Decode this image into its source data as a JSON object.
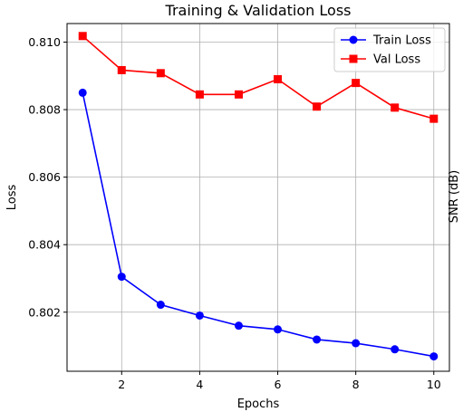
{
  "chart_data": {
    "type": "line",
    "title": "Training & Validation Loss",
    "xlabel": "Epochs",
    "ylabel": "Loss",
    "y2label": "SNR (dB)",
    "xlim": [
      0.6,
      10.4
    ],
    "ylim": [
      0.80025,
      0.81055
    ],
    "xticks": [
      2,
      4,
      6,
      8,
      10
    ],
    "yticks": [
      0.802,
      0.804,
      0.806,
      0.808,
      0.81
    ],
    "ytick_labels": [
      "0.802",
      "0.804",
      "0.806",
      "0.808",
      "0.810"
    ],
    "grid": true,
    "legend_position": "top-right",
    "x": [
      1,
      2,
      3,
      4,
      5,
      6,
      7,
      8,
      9,
      10
    ],
    "series": [
      {
        "name": "Train Loss",
        "color": "#0000ff",
        "marker": "circle",
        "values": [
          0.8085,
          0.80305,
          0.80222,
          0.8019,
          0.8016,
          0.80149,
          0.80119,
          0.80108,
          0.8009,
          0.80069
        ]
      },
      {
        "name": "Val Loss",
        "color": "#ff0000",
        "marker": "square",
        "values": [
          0.81018,
          0.80917,
          0.80908,
          0.80845,
          0.80845,
          0.8089,
          0.80809,
          0.80879,
          0.80806,
          0.80773
        ]
      }
    ]
  }
}
